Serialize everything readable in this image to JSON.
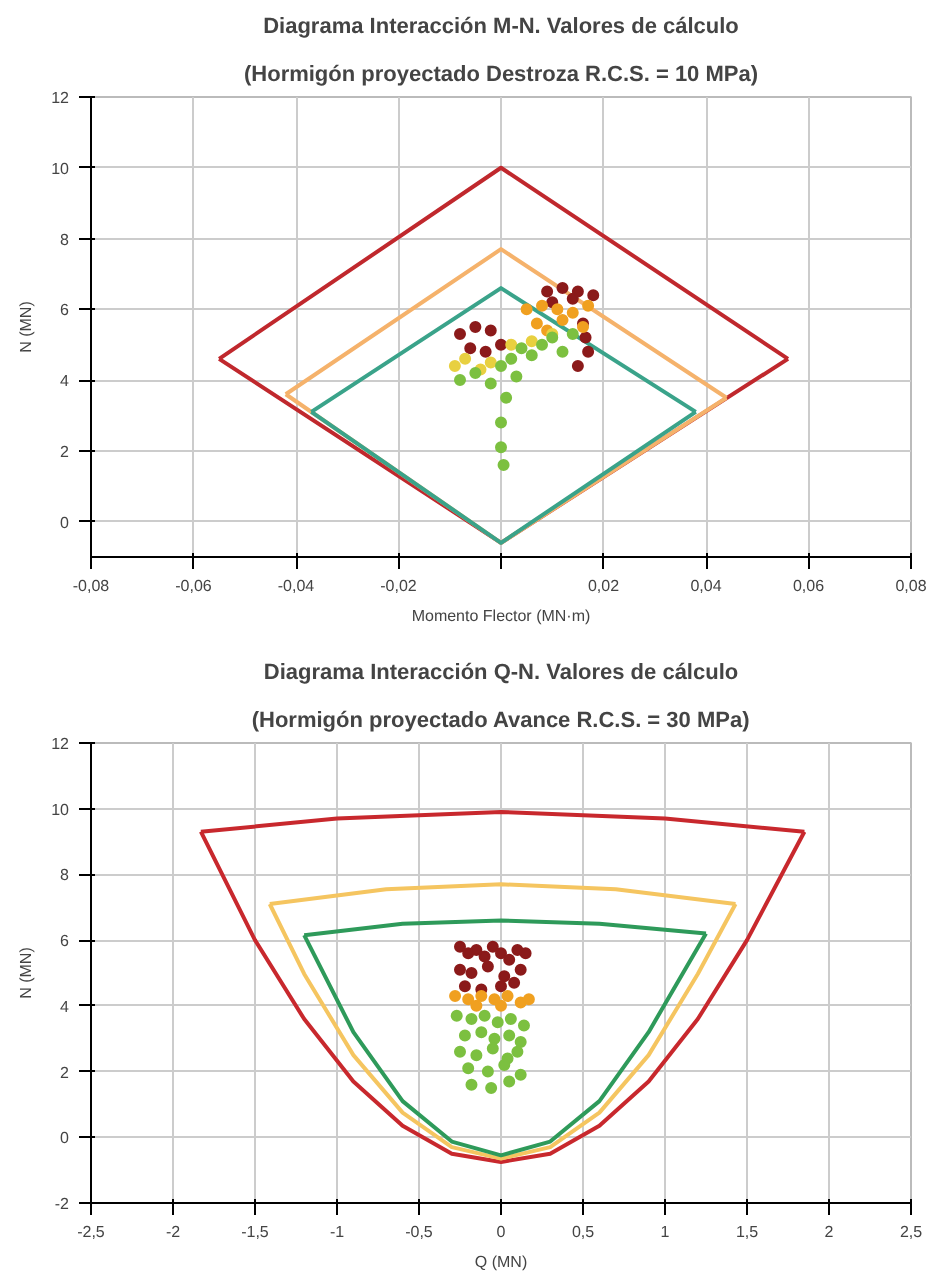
{
  "chart_data": [
    {
      "type": "line",
      "title": "Diagrama Interacción M-N. Valores de cálculo",
      "subtitle": "(Hormigón proyectado Destroza R.C.S. = 10 MPa)",
      "xlabel": "Momento Flector (MN·m)",
      "ylabel": "N (MN)",
      "grid": true,
      "xlim": [
        -0.08,
        0.08
      ],
      "ylim": [
        -1,
        12
      ],
      "xticks": [
        {
          "value": -0.08,
          "label": "-0,08"
        },
        {
          "value": -0.06,
          "label": "-0,06"
        },
        {
          "value": -0.04,
          "label": "-0,04"
        },
        {
          "value": -0.02,
          "label": "-0,02"
        },
        {
          "value": 0,
          "label": null
        },
        {
          "value": 0.02,
          "label": "0,02"
        },
        {
          "value": 0.04,
          "label": "0,04"
        },
        {
          "value": 0.06,
          "label": "0,06"
        },
        {
          "value": 0.08,
          "label": "0,08"
        }
      ],
      "yticks": [
        0,
        2,
        4,
        6,
        8,
        10,
        12
      ],
      "series": [
        {
          "color": "#c0282d",
          "x": [
            -0.055,
            0,
            0.056
          ],
          "values": [
            4.6,
            10,
            4.6
          ]
        },
        {
          "color": "#c0282d",
          "x": [
            -0.055,
            0,
            0.056
          ],
          "values": [
            4.6,
            -0.6,
            4.6
          ]
        },
        {
          "color": "#f5b26b",
          "x": [
            -0.042,
            0,
            0.044
          ],
          "values": [
            3.6,
            7.7,
            3.5
          ]
        },
        {
          "color": "#f5b26b",
          "x": [
            -0.042,
            0,
            0.044
          ],
          "values": [
            3.6,
            -0.6,
            3.5
          ]
        },
        {
          "color": "#3aa38a",
          "x": [
            -0.037,
            0,
            0.038
          ],
          "values": [
            3.1,
            6.6,
            3.1
          ]
        },
        {
          "color": "#3aa38a",
          "x": [
            -0.037,
            0,
            0.038
          ],
          "values": [
            3.1,
            -0.6,
            3.1
          ]
        },
        {
          "type": "scatter",
          "color": "#8b1a1a",
          "x": [
            0.009,
            0.012,
            0.015,
            0.018,
            0.01,
            0.014,
            0.016,
            0.0165,
            0.017,
            0.015,
            -0.008,
            -0.005,
            -0.002,
            0.0,
            -0.006,
            -0.003
          ],
          "values": [
            6.5,
            6.6,
            6.5,
            6.4,
            6.2,
            6.3,
            5.6,
            5.2,
            4.8,
            4.4,
            5.3,
            5.5,
            5.4,
            5.0,
            4.9,
            4.8
          ]
        },
        {
          "type": "scatter",
          "color": "#f0a020",
          "x": [
            0.005,
            0.008,
            0.011,
            0.014,
            0.017,
            0.007,
            0.012,
            0.016,
            0.009
          ],
          "values": [
            6.0,
            6.1,
            6.0,
            5.9,
            6.1,
            5.6,
            5.7,
            5.5,
            5.4
          ]
        },
        {
          "type": "scatter",
          "color": "#e8d040",
          "x": [
            -0.009,
            -0.007,
            -0.004,
            -0.002,
            0.002,
            0.006,
            0.01
          ],
          "values": [
            4.4,
            4.6,
            4.3,
            4.5,
            5.0,
            5.1,
            5.3
          ]
        },
        {
          "type": "scatter",
          "color": "#7cc040",
          "x": [
            -0.008,
            -0.005,
            -0.002,
            0.0,
            0.002,
            0.004,
            0.006,
            0.008,
            0.01,
            0.012,
            0.014,
            0.003,
            0.001,
            0.0,
            0.0,
            0.0005
          ],
          "values": [
            4.0,
            4.2,
            3.9,
            4.4,
            4.6,
            4.9,
            4.7,
            5.0,
            5.2,
            4.8,
            5.3,
            4.1,
            3.5,
            2.8,
            2.1,
            1.6
          ]
        }
      ]
    },
    {
      "type": "line",
      "title": "Diagrama Interacción Q-N. Valores de cálculo",
      "subtitle": "(Hormigón proyectado Avance R.C.S. = 30 MPa)",
      "xlabel": "Q (MN)",
      "ylabel": "N (MN)",
      "grid": true,
      "xlim": [
        -2.5,
        2.5
      ],
      "ylim": [
        -2,
        12
      ],
      "xticks": [
        {
          "value": -2.5,
          "label": "-2,5"
        },
        -2,
        {
          "value": -1.5,
          "label": "-1,5"
        },
        -1,
        {
          "value": -0.5,
          "label": "-0,5"
        },
        0,
        {
          "value": 0.5,
          "label": "0,5"
        },
        1,
        {
          "value": 1.5,
          "label": "1,5"
        },
        2,
        {
          "value": 2.5,
          "label": "2,5"
        }
      ],
      "yticks": [
        -2,
        0,
        2,
        4,
        6,
        8,
        10,
        12
      ],
      "series": [
        {
          "color": "#c8282d",
          "x": [
            -1.83,
            -1.5,
            -1.2,
            -0.9,
            -0.6,
            -0.3,
            0,
            0.3,
            0.6,
            0.9,
            1.2,
            1.5,
            1.85
          ],
          "values": [
            9.3,
            6.0,
            3.6,
            1.7,
            0.35,
            -0.5,
            -0.75,
            -0.5,
            0.35,
            1.7,
            3.6,
            6.0,
            9.3
          ]
        },
        {
          "color": "#c8282d",
          "x": [
            -1.83,
            -1.0,
            0,
            1.0,
            1.85
          ],
          "values": [
            9.3,
            9.7,
            9.9,
            9.7,
            9.3
          ]
        },
        {
          "color": "#f5c560",
          "x": [
            -1.41,
            -1.2,
            -0.9,
            -0.6,
            -0.3,
            0,
            0.3,
            0.6,
            0.9,
            1.2,
            1.43
          ],
          "values": [
            7.1,
            4.97,
            2.5,
            0.75,
            -0.3,
            -0.65,
            -0.3,
            0.75,
            2.5,
            4.97,
            7.1
          ]
        },
        {
          "color": "#f5c560",
          "x": [
            -1.41,
            -0.7,
            0,
            0.7,
            1.43
          ],
          "values": [
            7.1,
            7.55,
            7.7,
            7.55,
            7.1
          ]
        },
        {
          "color": "#2e9a5a",
          "x": [
            -1.2,
            -0.9,
            -0.6,
            -0.3,
            0,
            0.3,
            0.6,
            0.9,
            1.25
          ],
          "values": [
            6.15,
            3.2,
            1.1,
            -0.13,
            -0.55,
            -0.13,
            1.1,
            3.2,
            6.2
          ]
        },
        {
          "color": "#2e9a5a",
          "x": [
            -1.2,
            -0.6,
            0,
            0.6,
            1.25
          ],
          "values": [
            6.15,
            6.5,
            6.6,
            6.5,
            6.2
          ]
        },
        {
          "type": "scatter",
          "color": "#8b1a1a",
          "x": [
            -0.25,
            -0.2,
            -0.15,
            -0.1,
            -0.05,
            0.0,
            0.05,
            0.1,
            0.15,
            -0.25,
            -0.18,
            -0.08,
            0.02,
            0.12,
            -0.22,
            -0.12,
            0.0,
            0.08
          ],
          "values": [
            5.8,
            5.6,
            5.7,
            5.5,
            5.8,
            5.6,
            5.4,
            5.7,
            5.6,
            5.1,
            5.0,
            5.2,
            4.9,
            5.1,
            4.6,
            4.5,
            4.6,
            4.7
          ]
        },
        {
          "type": "scatter",
          "color": "#f0a020",
          "x": [
            -0.28,
            -0.2,
            -0.12,
            -0.04,
            0.04,
            0.12,
            0.17,
            -0.15,
            0.0
          ],
          "values": [
            4.3,
            4.2,
            4.3,
            4.2,
            4.3,
            4.1,
            4.2,
            4.0,
            4.0
          ]
        },
        {
          "type": "scatter",
          "color": "#7cc040",
          "x": [
            -0.27,
            -0.18,
            -0.1,
            -0.02,
            0.06,
            0.14,
            -0.22,
            -0.12,
            -0.04,
            0.05,
            0.12,
            -0.25,
            -0.15,
            -0.05,
            0.04,
            0.1,
            -0.2,
            -0.08,
            0.02,
            0.12,
            -0.18,
            -0.06,
            0.05
          ],
          "values": [
            3.7,
            3.6,
            3.7,
            3.5,
            3.6,
            3.4,
            3.1,
            3.2,
            3.0,
            3.1,
            2.9,
            2.6,
            2.5,
            2.7,
            2.4,
            2.6,
            2.1,
            2.0,
            2.2,
            1.9,
            1.6,
            1.5,
            1.7
          ]
        }
      ]
    }
  ]
}
